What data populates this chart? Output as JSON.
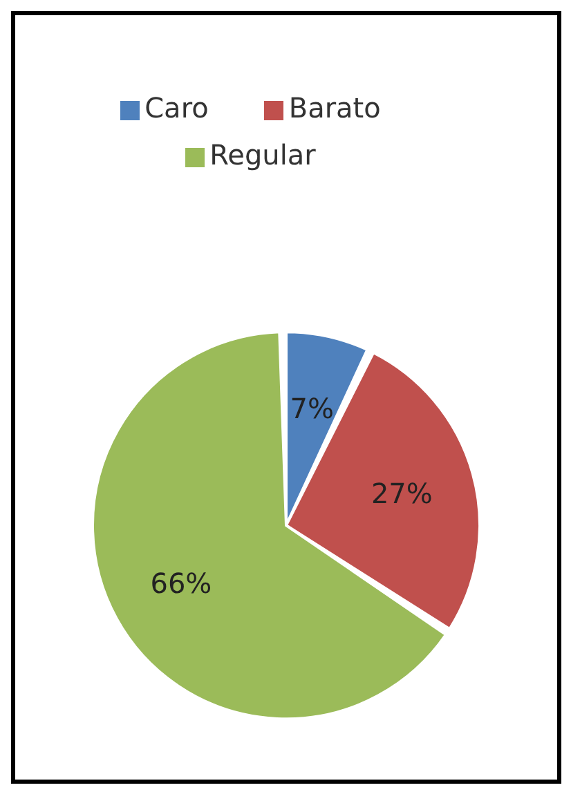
{
  "chart_data": {
    "type": "pie",
    "categories": [
      "Caro",
      "Barato",
      "Regular"
    ],
    "values": [
      7,
      27,
      66
    ],
    "colors": [
      "#4f81bd",
      "#c0504d",
      "#9bbb59"
    ],
    "value_labels": [
      "7%",
      "27%",
      "66%"
    ],
    "legend": "top"
  }
}
